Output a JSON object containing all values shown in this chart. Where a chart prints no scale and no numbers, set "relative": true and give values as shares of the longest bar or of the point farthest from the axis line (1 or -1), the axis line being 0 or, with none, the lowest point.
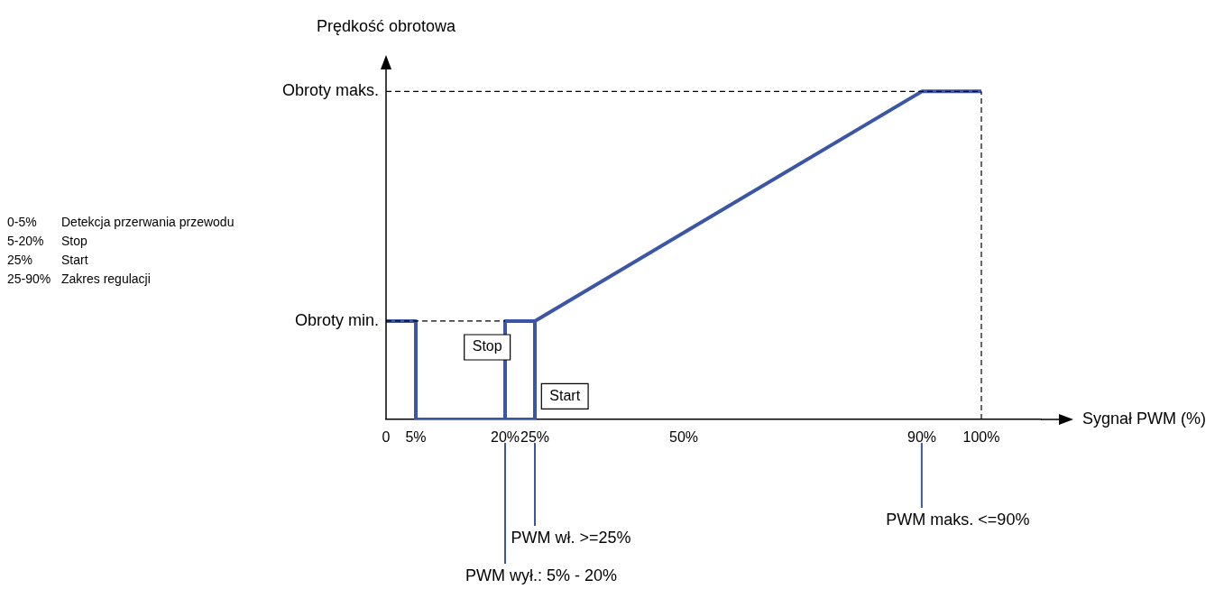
{
  "chart_data": {
    "type": "line",
    "xlabel": "Sygnał PWM (%)",
    "ylabel": "Prędkość obrotowa",
    "relative": true,
    "xlim": [
      0,
      110
    ],
    "xticks": [
      {
        "value": 0,
        "label": "0"
      },
      {
        "value": 5,
        "label": "5%"
      },
      {
        "value": 20,
        "label": "20%"
      },
      {
        "value": 25,
        "label": "25%"
      },
      {
        "value": 50,
        "label": "50%"
      },
      {
        "value": 90,
        "label": "90%"
      },
      {
        "value": 100,
        "label": "100%"
      }
    ],
    "series": [
      {
        "color": "#000000",
        "line_style": "dashed",
        "x": [
          0,
          20
        ],
        "values": [
          0.3,
          0.3
        ]
      },
      {
        "color": "#000000",
        "line_style": "dashed",
        "x": [
          0,
          100
        ],
        "values": [
          1,
          1
        ]
      },
      {
        "color": "#000000",
        "line_style": "dashed",
        "x": [
          100,
          100
        ],
        "values": [
          0,
          1
        ]
      },
      {
        "color": "#3a56a5",
        "line_style": "solid",
        "x": [
          0,
          5,
          5,
          25,
          25,
          90,
          100
        ],
        "values": [
          0.3,
          0.3,
          0,
          0,
          0.3,
          1,
          1
        ]
      },
      {
        "color": "#3a56a5",
        "line_style": "solid",
        "x": [
          20,
          20,
          25
        ],
        "values": [
          0,
          0.3,
          0.3
        ]
      }
    ],
    "annotations": [
      "0-5% Detekcja przerwania przewodu",
      "5-20% Stop",
      "25% Start",
      "25-90% Zakres regulacji",
      "Stop",
      "Start",
      "PWM wył.: 5% - 20%",
      "PWM wł. >=25%",
      "PWM maks. <=90%",
      "Obroty min.",
      "Obroty maks."
    ]
  }
}
